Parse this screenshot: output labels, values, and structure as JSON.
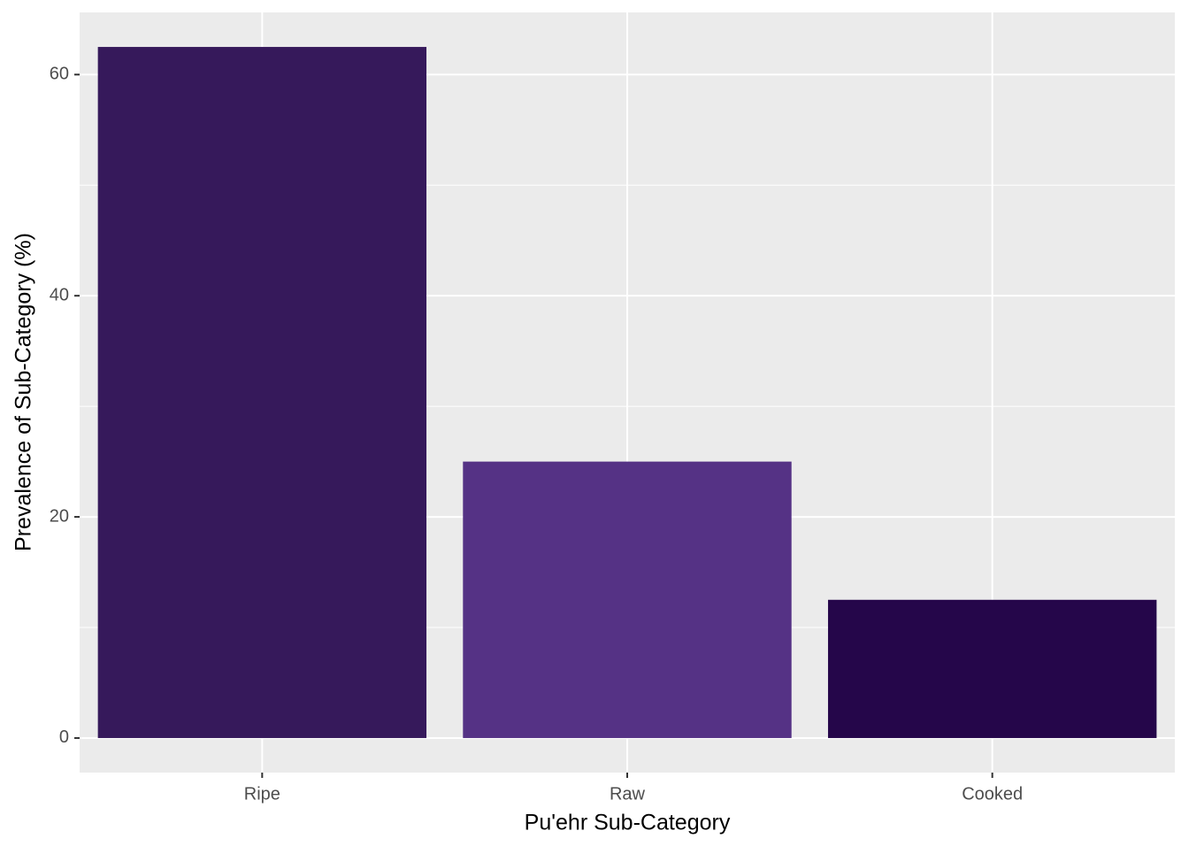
{
  "chart_data": {
    "type": "bar",
    "x_label": "Pu'ehr Sub-Category",
    "y_label": "Prevalence of Sub-Category (%)",
    "categories": [
      "Ripe",
      "Raw",
      "Cooked"
    ],
    "values": [
      62.5,
      25,
      12.5
    ],
    "colors": [
      "#36195b",
      "#553285",
      "#25064a"
    ],
    "ylim": [
      -3.125,
      65.625
    ],
    "yticks": [
      0,
      20,
      40,
      60
    ],
    "y_minor_ticks": [
      10,
      30,
      50
    ],
    "grid": true
  }
}
